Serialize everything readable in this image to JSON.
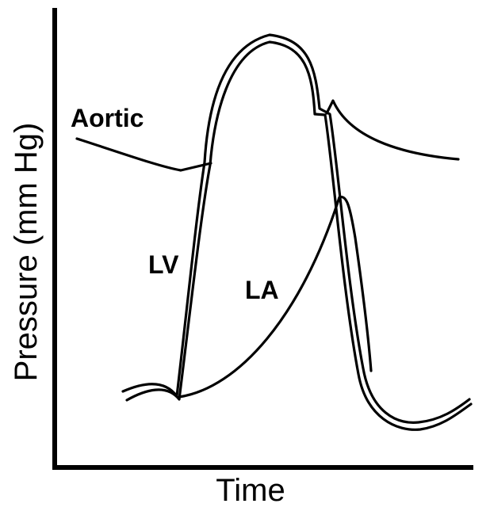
{
  "diagram": {
    "xlabel": "Time",
    "ylabel": "Pressure (mm Hg)",
    "curves": {
      "aortic": "Aortic",
      "lv": "LV",
      "la": "LA"
    }
  }
}
